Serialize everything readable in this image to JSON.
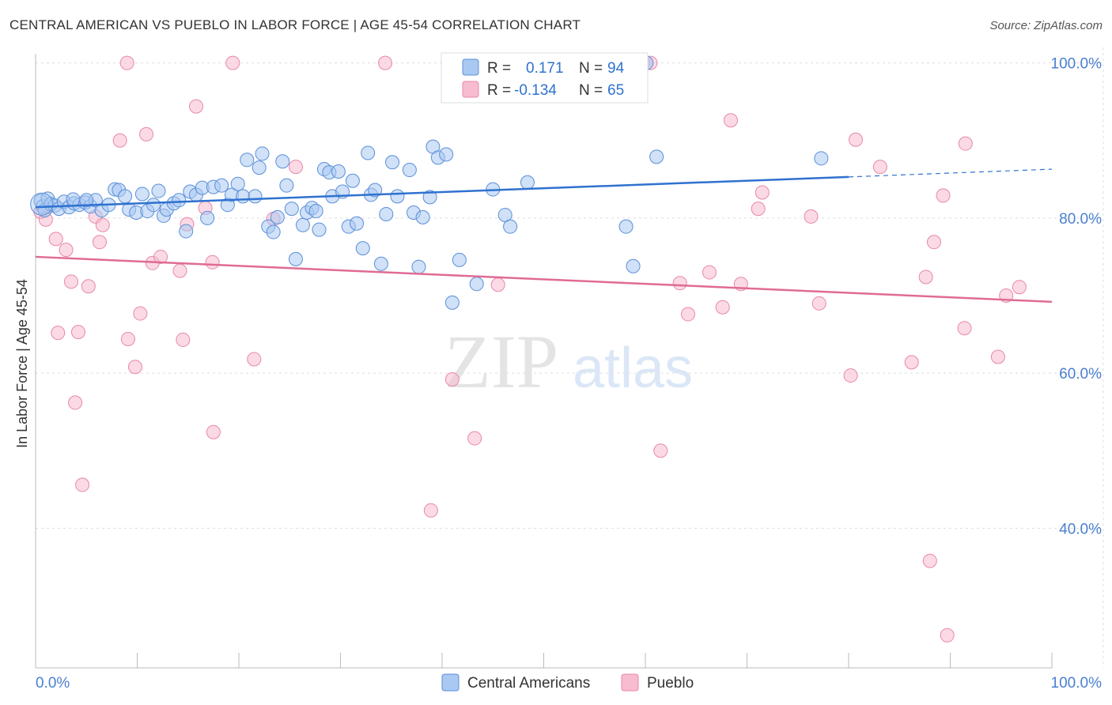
{
  "header": {
    "title": "CENTRAL AMERICAN VS PUEBLO IN LABOR FORCE | AGE 45-54 CORRELATION CHART",
    "source": "Source: ZipAtlas.com"
  },
  "watermark": {
    "zip": "ZIP",
    "atlas": "atlas"
  },
  "legend": {
    "r_label": "R =",
    "n_label": "N =",
    "rows": [
      {
        "r": "0.171",
        "n": "94"
      },
      {
        "r": "-0.134",
        "n": "65"
      }
    ]
  },
  "bottom_legend": [
    "Central Americans",
    "Pueblo"
  ],
  "colors": {
    "blue_fill": "#a9c9f2",
    "blue_stroke": "#5a8fd8",
    "blue_line": "#2f72cf",
    "pink_fill": "#f7bcd0",
    "pink_stroke": "#e888a8",
    "pink_line": "#e06b95",
    "axis_text": "#4a7fd0",
    "grid": "#dddddd"
  },
  "chart_data": {
    "type": "scatter",
    "title": "CENTRAL AMERICAN VS PUEBLO IN LABOR FORCE | AGE 45-54 CORRELATION CHART",
    "xlabel": "",
    "ylabel": "In Labor Force | Age 45-54",
    "xlim": [
      0,
      100
    ],
    "ylim": [
      22,
      102
    ],
    "x_tick_labels": [
      "0.0%",
      "100.0%"
    ],
    "y_ticks": [
      40,
      60,
      80,
      100
    ],
    "y_tick_labels": [
      "40.0%",
      "60.0%",
      "80.0%",
      "100.0%"
    ],
    "grid": true,
    "legend_position": "top-center",
    "series": [
      {
        "name": "Central Americans",
        "r": 0.171,
        "n": 94,
        "trend": {
          "x0": 0,
          "y0": 81.4,
          "x1": 80,
          "y1": 85.3,
          "dashed_to_x": 100,
          "dashed_to_y": 86.3
        },
        "points": [
          [
            0.5,
            82.2
          ],
          [
            0.7,
            81.5
          ],
          [
            0.9,
            81.0
          ],
          [
            1.2,
            82.5
          ],
          [
            1.5,
            81.8
          ],
          [
            1.9,
            81.6
          ],
          [
            2.3,
            81.2
          ],
          [
            2.8,
            82.1
          ],
          [
            3.3,
            81.4
          ],
          [
            3.8,
            81.9
          ],
          [
            4.3,
            81.7
          ],
          [
            4.9,
            82.0
          ],
          [
            5.4,
            81.5
          ],
          [
            5.9,
            82.3
          ],
          [
            6.5,
            81.0
          ],
          [
            7.2,
            81.7
          ],
          [
            7.8,
            83.7
          ],
          [
            8.2,
            83.6
          ],
          [
            8.8,
            82.8
          ],
          [
            9.2,
            81.1
          ],
          [
            9.9,
            80.7
          ],
          [
            10.5,
            83.1
          ],
          [
            11.0,
            80.9
          ],
          [
            11.6,
            81.7
          ],
          [
            12.1,
            83.5
          ],
          [
            12.6,
            80.3
          ],
          [
            12.9,
            81.1
          ],
          [
            13.6,
            81.9
          ],
          [
            14.1,
            82.3
          ],
          [
            14.8,
            78.3
          ],
          [
            15.2,
            83.4
          ],
          [
            15.8,
            83.0
          ],
          [
            16.4,
            83.9
          ],
          [
            16.9,
            80.0
          ],
          [
            17.5,
            84.0
          ],
          [
            18.3,
            84.2
          ],
          [
            18.9,
            81.7
          ],
          [
            19.3,
            83.0
          ],
          [
            19.9,
            84.4
          ],
          [
            20.4,
            82.8
          ],
          [
            20.8,
            87.5
          ],
          [
            21.6,
            82.8
          ],
          [
            22.0,
            86.5
          ],
          [
            22.3,
            88.3
          ],
          [
            22.9,
            78.9
          ],
          [
            23.4,
            78.2
          ],
          [
            23.8,
            80.1
          ],
          [
            24.3,
            87.3
          ],
          [
            24.7,
            84.2
          ],
          [
            25.2,
            81.2
          ],
          [
            25.6,
            74.7
          ],
          [
            26.3,
            79.1
          ],
          [
            26.7,
            80.7
          ],
          [
            27.2,
            81.3
          ],
          [
            27.6,
            80.9
          ],
          [
            27.9,
            78.5
          ],
          [
            28.4,
            86.3
          ],
          [
            28.9,
            85.9
          ],
          [
            29.2,
            82.8
          ],
          [
            29.8,
            86.0
          ],
          [
            30.2,
            83.4
          ],
          [
            30.8,
            78.9
          ],
          [
            31.2,
            84.8
          ],
          [
            31.6,
            79.3
          ],
          [
            32.2,
            76.1
          ],
          [
            32.7,
            88.4
          ],
          [
            33.0,
            83.0
          ],
          [
            33.4,
            83.6
          ],
          [
            34.0,
            74.1
          ],
          [
            34.5,
            80.5
          ],
          [
            35.1,
            87.2
          ],
          [
            35.6,
            82.8
          ],
          [
            36.8,
            86.2
          ],
          [
            37.2,
            80.7
          ],
          [
            37.7,
            73.7
          ],
          [
            38.1,
            80.1
          ],
          [
            38.8,
            82.7
          ],
          [
            39.1,
            89.2
          ],
          [
            39.6,
            87.8
          ],
          [
            40.4,
            88.2
          ],
          [
            41.0,
            69.1
          ],
          [
            41.7,
            74.6
          ],
          [
            43.4,
            71.5
          ],
          [
            45.0,
            83.7
          ],
          [
            46.2,
            80.4
          ],
          [
            46.7,
            78.9
          ],
          [
            48.4,
            84.6
          ],
          [
            58.1,
            78.9
          ],
          [
            58.8,
            73.8
          ],
          [
            60.1,
            100.0
          ],
          [
            61.1,
            87.9
          ],
          [
            77.3,
            87.7
          ],
          [
            3.7,
            82.4
          ],
          [
            5.0,
            82.3
          ]
        ]
      },
      {
        "name": "Pueblo",
        "r": -0.134,
        "n": 65,
        "trend": {
          "x0": 0,
          "y0": 75.0,
          "x1": 100,
          "y1": 69.2
        },
        "points": [
          [
            0.5,
            80.8
          ],
          [
            1.0,
            79.8
          ],
          [
            1.3,
            81.5
          ],
          [
            2.0,
            77.3
          ],
          [
            2.2,
            65.2
          ],
          [
            3.0,
            75.9
          ],
          [
            3.5,
            71.8
          ],
          [
            3.9,
            56.2
          ],
          [
            4.2,
            65.3
          ],
          [
            4.6,
            45.6
          ],
          [
            5.2,
            71.2
          ],
          [
            5.9,
            80.2
          ],
          [
            6.3,
            76.9
          ],
          [
            6.6,
            79.1
          ],
          [
            8.3,
            90.0
          ],
          [
            9.0,
            100.0
          ],
          [
            9.1,
            64.4
          ],
          [
            9.8,
            60.8
          ],
          [
            10.3,
            67.7
          ],
          [
            10.9,
            90.8
          ],
          [
            11.5,
            74.2
          ],
          [
            12.3,
            75.0
          ],
          [
            14.2,
            73.2
          ],
          [
            14.5,
            64.3
          ],
          [
            14.9,
            79.2
          ],
          [
            15.8,
            94.4
          ],
          [
            16.7,
            81.3
          ],
          [
            17.4,
            74.3
          ],
          [
            17.5,
            52.4
          ],
          [
            19.4,
            100.0
          ],
          [
            21.5,
            61.8
          ],
          [
            23.4,
            79.9
          ],
          [
            25.6,
            86.6
          ],
          [
            34.4,
            100.0
          ],
          [
            38.9,
            42.3
          ],
          [
            41.0,
            59.2
          ],
          [
            43.2,
            51.6
          ],
          [
            45.5,
            71.4
          ],
          [
            59.8,
            100.0
          ],
          [
            60.5,
            100.0
          ],
          [
            61.5,
            50.0
          ],
          [
            63.4,
            71.6
          ],
          [
            64.2,
            67.6
          ],
          [
            66.3,
            73.0
          ],
          [
            67.6,
            68.5
          ],
          [
            68.4,
            92.6
          ],
          [
            69.4,
            71.5
          ],
          [
            71.1,
            81.2
          ],
          [
            71.5,
            83.3
          ],
          [
            76.3,
            80.2
          ],
          [
            77.1,
            69.0
          ],
          [
            80.2,
            59.7
          ],
          [
            80.7,
            90.1
          ],
          [
            83.1,
            86.6
          ],
          [
            86.2,
            61.4
          ],
          [
            87.6,
            72.4
          ],
          [
            88.0,
            35.8
          ],
          [
            88.4,
            76.9
          ],
          [
            89.3,
            82.9
          ],
          [
            89.7,
            26.2
          ],
          [
            91.4,
            65.8
          ],
          [
            91.5,
            89.6
          ],
          [
            94.7,
            62.1
          ],
          [
            95.5,
            70.0
          ],
          [
            96.8,
            71.1
          ]
        ]
      }
    ]
  }
}
